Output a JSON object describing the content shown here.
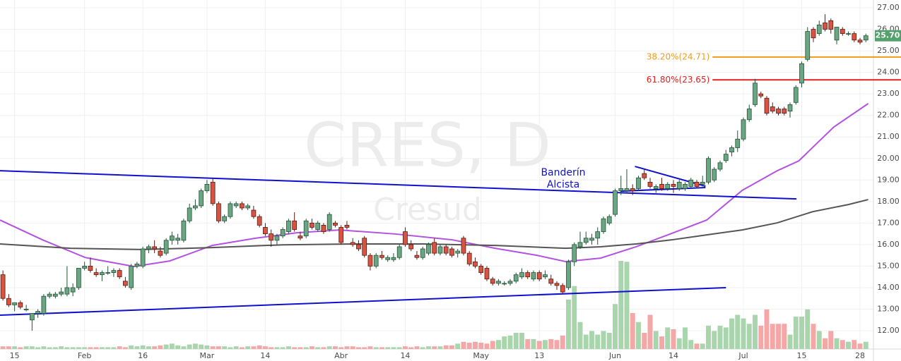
{
  "chart_data": {
    "type": "candlestick",
    "watermark": {
      "symbol": "CRES, D",
      "name": "Cresud"
    },
    "candles": [
      [
        14.6,
        14.8,
        13.4,
        13.5
      ],
      [
        13.5,
        13.7,
        13.1,
        13.2
      ],
      [
        13.2,
        13.3,
        12.9,
        13.3
      ],
      [
        13.3,
        13.4,
        13.0,
        13.1
      ],
      [
        13.0,
        13.2,
        12.9,
        13.0
      ],
      [
        12.5,
        12.8,
        12.0,
        12.8
      ],
      [
        12.8,
        13.0,
        12.6,
        12.9
      ],
      [
        12.8,
        13.7,
        12.7,
        13.6
      ],
      [
        13.6,
        13.8,
        13.5,
        13.7
      ],
      [
        13.6,
        13.8,
        13.5,
        13.7
      ],
      [
        13.7,
        14.0,
        13.6,
        13.8
      ],
      [
        13.7,
        15.0,
        13.6,
        14.0
      ],
      [
        13.8,
        14.2,
        13.6,
        14.0
      ],
      [
        14.0,
        14.9,
        13.9,
        14.9
      ],
      [
        14.9,
        15.2,
        14.8,
        15.0
      ],
      [
        15.0,
        15.4,
        14.7,
        14.8
      ],
      [
        14.7,
        14.9,
        14.5,
        14.6
      ],
      [
        14.6,
        14.8,
        14.3,
        14.7
      ],
      [
        14.7,
        15.0,
        14.6,
        14.7
      ],
      [
        14.7,
        14.9,
        14.5,
        14.8
      ],
      [
        14.8,
        14.9,
        14.4,
        14.5
      ],
      [
        14.3,
        14.5,
        14.0,
        14.1
      ],
      [
        14.0,
        15.1,
        13.9,
        15.0
      ],
      [
        15.0,
        15.2,
        14.9,
        15.1
      ],
      [
        15.0,
        15.9,
        14.9,
        15.8
      ],
      [
        15.8,
        16.0,
        15.6,
        15.9
      ],
      [
        15.9,
        16.2,
        15.6,
        15.8
      ],
      [
        15.7,
        15.9,
        15.4,
        15.5
      ],
      [
        15.6,
        16.3,
        15.5,
        16.2
      ],
      [
        16.2,
        16.6,
        16.0,
        16.4
      ],
      [
        16.2,
        16.5,
        16.0,
        16.3
      ],
      [
        16.2,
        17.2,
        16.1,
        17.1
      ],
      [
        17.1,
        17.9,
        17.0,
        17.7
      ],
      [
        17.7,
        18.1,
        17.6,
        17.8
      ],
      [
        17.8,
        18.6,
        17.7,
        18.5
      ],
      [
        18.5,
        19.0,
        18.4,
        18.8
      ],
      [
        18.9,
        19.1,
        17.8,
        17.9
      ],
      [
        17.9,
        18.0,
        17.0,
        17.1
      ],
      [
        17.1,
        17.4,
        17.0,
        17.3
      ],
      [
        17.3,
        18.0,
        17.2,
        17.9
      ],
      [
        17.8,
        18.0,
        17.7,
        17.9
      ],
      [
        17.9,
        18.0,
        17.6,
        17.7
      ],
      [
        17.7,
        17.9,
        17.6,
        17.8
      ],
      [
        17.6,
        17.8,
        17.2,
        17.3
      ],
      [
        17.3,
        17.4,
        16.8,
        16.9
      ],
      [
        16.8,
        17.0,
        16.4,
        16.5
      ],
      [
        16.5,
        16.7,
        15.9,
        16.2
      ],
      [
        16.2,
        16.5,
        16.0,
        16.4
      ],
      [
        16.4,
        16.8,
        16.3,
        16.7
      ],
      [
        16.6,
        17.2,
        16.5,
        17.1
      ],
      [
        17.1,
        17.5,
        16.6,
        16.7
      ],
      [
        16.4,
        16.6,
        16.2,
        16.3
      ],
      [
        16.4,
        17.2,
        16.3,
        17.1
      ],
      [
        17.0,
        17.2,
        16.7,
        16.8
      ],
      [
        16.7,
        17.1,
        16.6,
        17.0
      ],
      [
        16.9,
        17.0,
        16.5,
        16.6
      ],
      [
        16.7,
        17.5,
        16.6,
        17.4
      ],
      [
        17.0,
        17.1,
        16.8,
        16.9
      ],
      [
        16.8,
        16.9,
        16.0,
        16.1
      ],
      [
        16.9,
        17.1,
        16.7,
        16.8
      ],
      [
        16.1,
        16.3,
        15.9,
        16.0
      ],
      [
        16.0,
        16.2,
        15.7,
        15.8
      ],
      [
        16.3,
        16.4,
        15.4,
        15.5
      ],
      [
        15.5,
        15.6,
        14.8,
        15.0
      ],
      [
        15.0,
        15.6,
        14.9,
        15.5
      ],
      [
        15.5,
        15.7,
        15.3,
        15.4
      ],
      [
        15.3,
        15.5,
        15.2,
        15.4
      ],
      [
        15.3,
        15.6,
        15.2,
        15.4
      ],
      [
        15.4,
        16.0,
        15.3,
        15.9
      ],
      [
        16.6,
        16.8,
        15.9,
        16.0
      ],
      [
        16.0,
        16.2,
        15.7,
        15.8
      ],
      [
        15.5,
        15.7,
        15.3,
        15.4
      ],
      [
        15.4,
        15.9,
        15.3,
        15.8
      ],
      [
        15.6,
        16.1,
        15.5,
        16.0
      ],
      [
        16.1,
        16.3,
        15.5,
        15.6
      ],
      [
        15.6,
        16.0,
        15.5,
        15.9
      ],
      [
        15.9,
        16.0,
        15.5,
        15.6
      ],
      [
        15.8,
        15.9,
        15.4,
        15.5
      ],
      [
        15.6,
        15.8,
        15.4,
        15.7
      ],
      [
        16.3,
        16.4,
        15.5,
        15.6
      ],
      [
        15.6,
        15.7,
        15.0,
        15.1
      ],
      [
        15.2,
        15.4,
        14.9,
        15.0
      ],
      [
        15.0,
        15.1,
        14.6,
        14.7
      ],
      [
        14.9,
        15.0,
        14.3,
        14.4
      ],
      [
        14.4,
        14.5,
        14.1,
        14.2
      ],
      [
        14.2,
        14.4,
        14.1,
        14.3
      ],
      [
        14.2,
        14.3,
        14.1,
        14.2
      ],
      [
        14.2,
        14.4,
        14.1,
        14.3
      ],
      [
        14.3,
        14.7,
        14.2,
        14.6
      ],
      [
        14.5,
        14.9,
        14.4,
        14.7
      ],
      [
        14.7,
        14.8,
        14.4,
        14.5
      ],
      [
        14.4,
        14.8,
        14.3,
        14.7
      ],
      [
        14.7,
        14.8,
        14.3,
        14.4
      ],
      [
        14.5,
        14.8,
        14.4,
        14.6
      ],
      [
        14.4,
        14.6,
        14.1,
        14.2
      ],
      [
        14.2,
        14.3,
        13.9,
        14.1
      ],
      [
        14.1,
        14.2,
        13.7,
        13.8
      ],
      [
        14.0,
        15.3,
        13.9,
        15.2
      ],
      [
        15.2,
        16.1,
        15.0,
        16.0
      ],
      [
        15.9,
        16.6,
        15.8,
        16.1
      ],
      [
        16.1,
        16.6,
        16.0,
        16.3
      ],
      [
        16.2,
        16.5,
        16.0,
        16.3
      ],
      [
        16.3,
        16.8,
        16.0,
        16.6
      ],
      [
        16.6,
        17.3,
        16.5,
        17.2
      ],
      [
        17.0,
        17.4,
        16.9,
        17.3
      ],
      [
        17.4,
        18.6,
        17.3,
        18.5
      ],
      [
        18.5,
        19.2,
        18.3,
        18.6
      ],
      [
        18.5,
        19.5,
        18.4,
        18.6
      ],
      [
        18.6,
        18.8,
        18.3,
        18.5
      ],
      [
        18.6,
        19.2,
        18.5,
        19.1
      ],
      [
        19.3,
        19.5,
        19.0,
        19.1
      ],
      [
        18.9,
        19.1,
        18.6,
        18.7
      ],
      [
        18.6,
        18.8,
        18.4,
        18.7
      ],
      [
        18.8,
        19.1,
        18.5,
        18.6
      ],
      [
        18.6,
        18.9,
        18.5,
        18.8
      ],
      [
        18.8,
        19.0,
        18.4,
        18.7
      ],
      [
        18.6,
        19.0,
        18.5,
        18.9
      ],
      [
        18.6,
        18.9,
        18.5,
        18.8
      ],
      [
        18.7,
        19.1,
        18.6,
        19.0
      ],
      [
        18.9,
        19.0,
        18.6,
        18.7
      ],
      [
        18.8,
        19.2,
        18.7,
        18.9
      ],
      [
        18.9,
        20.1,
        18.8,
        20.0
      ],
      [
        19.0,
        19.6,
        18.9,
        19.5
      ],
      [
        19.5,
        19.9,
        19.4,
        19.8
      ],
      [
        19.9,
        20.4,
        19.8,
        20.2
      ],
      [
        20.3,
        20.6,
        20.1,
        20.5
      ],
      [
        20.5,
        21.3,
        20.3,
        20.9
      ],
      [
        20.9,
        21.9,
        20.8,
        21.8
      ],
      [
        21.8,
        22.5,
        21.7,
        22.3
      ],
      [
        22.5,
        23.7,
        22.4,
        23.5
      ],
      [
        23.0,
        23.1,
        22.8,
        22.9
      ],
      [
        22.8,
        22.9,
        22.0,
        22.1
      ],
      [
        22.4,
        22.6,
        22.1,
        22.2
      ],
      [
        22.3,
        22.4,
        22.0,
        22.1
      ],
      [
        22.3,
        22.4,
        22.0,
        22.1
      ],
      [
        22.2,
        22.6,
        21.9,
        22.5
      ],
      [
        22.6,
        23.4,
        22.5,
        23.3
      ],
      [
        23.5,
        24.5,
        23.3,
        24.4
      ],
      [
        24.6,
        26.1,
        24.5,
        25.9
      ],
      [
        26.0,
        26.1,
        25.4,
        25.6
      ],
      [
        25.8,
        26.4,
        25.7,
        26.2
      ],
      [
        26.3,
        26.7,
        25.9,
        26.0
      ],
      [
        26.4,
        26.5,
        25.8,
        26.0
      ],
      [
        25.5,
        26.1,
        25.3,
        26.1
      ],
      [
        26.0,
        26.1,
        25.7,
        25.8
      ],
      [
        25.8,
        25.9,
        25.7,
        25.8
      ],
      [
        25.8,
        25.9,
        25.4,
        25.5
      ],
      [
        25.5,
        25.6,
        25.3,
        25.4
      ],
      [
        25.5,
        25.8,
        25.4,
        25.7
      ]
    ],
    "volume": [
      3,
      3,
      3,
      2,
      3,
      3,
      2,
      3,
      2,
      2,
      3,
      2,
      2,
      2,
      2,
      2,
      2,
      2,
      2,
      2,
      3,
      2,
      4,
      3,
      4,
      3,
      3,
      4,
      5,
      6,
      4,
      3,
      5,
      6,
      5,
      4,
      3,
      3,
      3,
      2,
      3,
      2,
      3,
      3,
      4,
      3,
      2,
      2,
      2,
      3,
      2,
      2,
      2,
      3,
      2,
      2,
      3,
      3,
      2,
      3,
      3,
      2,
      2,
      3,
      2,
      2,
      2,
      2,
      2,
      3,
      2,
      3,
      2,
      3,
      3,
      3,
      4,
      4,
      6,
      8,
      7,
      8,
      7,
      6,
      9,
      10,
      14,
      15,
      18,
      18,
      11,
      11,
      9,
      10,
      11,
      10,
      15,
      55,
      70,
      30,
      16,
      20,
      16,
      20,
      18,
      50,
      98,
      97,
      40,
      30,
      18,
      38,
      20,
      14,
      24,
      22,
      12,
      24,
      10,
      6,
      6,
      26,
      20,
      26,
      24,
      34,
      38,
      34,
      28,
      38,
      26,
      44,
      28,
      28,
      28,
      16,
      36,
      36,
      44,
      28,
      20,
      12,
      20,
      12,
      10,
      8,
      10,
      6,
      8
    ],
    "colors": {
      "up": "#6ba583",
      "up_edge": "#225437",
      "down": "#d75442",
      "down_edge": "#5b1a13",
      "volume_up": "#a9d5ad",
      "volume_down": "#f5a6a6"
    },
    "xlim": [
      -0.5,
      149.3
    ],
    "xticks": [
      {
        "value": 2,
        "label": "15"
      },
      {
        "value": 14,
        "label": "Feb"
      },
      {
        "value": 24,
        "label": "16"
      },
      {
        "value": 35,
        "label": "Mar"
      },
      {
        "value": 45,
        "label": "14"
      },
      {
        "value": 58,
        "label": "Abr"
      },
      {
        "value": 69,
        "label": "14"
      },
      {
        "value": 82,
        "label": "May"
      },
      {
        "value": 92,
        "label": "13"
      },
      {
        "value": 105,
        "label": "Jun"
      },
      {
        "value": 115,
        "label": "14"
      },
      {
        "value": 127,
        "label": "Jul"
      },
      {
        "value": 137,
        "label": "15"
      },
      {
        "value": 147,
        "label": "28"
      }
    ],
    "ylim": [
      11.15,
      27.36
    ],
    "yticks": [
      {
        "value": 12,
        "label": "12.00"
      },
      {
        "value": 13,
        "label": "13.00"
      },
      {
        "value": 14,
        "label": "14.00"
      },
      {
        "value": 15,
        "label": "15.00"
      },
      {
        "value": 16,
        "label": "16.00"
      },
      {
        "value": 17,
        "label": "17.00"
      },
      {
        "value": 18,
        "label": "18.00"
      },
      {
        "value": 19,
        "label": "19.00"
      },
      {
        "value": 20,
        "label": "20.00"
      },
      {
        "value": 21,
        "label": "21.00"
      },
      {
        "value": 22,
        "label": "22.00"
      },
      {
        "value": 23,
        "label": "23.00"
      },
      {
        "value": 24,
        "label": "24.00"
      },
      {
        "value": 25,
        "label": "25.00"
      },
      {
        "value": 26,
        "label": "26.00"
      },
      {
        "value": 27,
        "label": "27.00"
      }
    ],
    "grid": true,
    "last_price": {
      "value": 25.7,
      "label": "25.70",
      "color": "#53a16b"
    },
    "moving_averages": [
      {
        "color": "#b452e0",
        "points": [
          [
            -0.5,
            17.14
          ],
          [
            6.8,
            16.22
          ],
          [
            14.1,
            15.4
          ],
          [
            22.5,
            14.98
          ],
          [
            28.6,
            15.24
          ],
          [
            35.9,
            15.96
          ],
          [
            43.2,
            16.29
          ],
          [
            50.4,
            16.55
          ],
          [
            57.7,
            16.68
          ],
          [
            67.4,
            16.49
          ],
          [
            77.1,
            16.22
          ],
          [
            84.4,
            15.83
          ],
          [
            91.6,
            15.5
          ],
          [
            96.5,
            15.21
          ],
          [
            102.5,
            15.37
          ],
          [
            108.6,
            15.9
          ],
          [
            114.7,
            16.52
          ],
          [
            120.7,
            17.14
          ],
          [
            126.8,
            18.52
          ],
          [
            132.8,
            19.43
          ],
          [
            136.5,
            19.89
          ],
          [
            142.5,
            21.46
          ],
          [
            148.4,
            22.55
          ]
        ]
      },
      {
        "color": "#555555",
        "points": [
          [
            -0.5,
            16.03
          ],
          [
            11.6,
            15.83
          ],
          [
            23.8,
            15.77
          ],
          [
            35.9,
            15.86
          ],
          [
            48,
            15.99
          ],
          [
            60.1,
            16.03
          ],
          [
            72.2,
            16.03
          ],
          [
            84.4,
            15.96
          ],
          [
            96.5,
            15.83
          ],
          [
            102.5,
            15.9
          ],
          [
            108.6,
            16.03
          ],
          [
            114.7,
            16.22
          ],
          [
            120.7,
            16.45
          ],
          [
            126.8,
            16.68
          ],
          [
            132.8,
            17.01
          ],
          [
            138.9,
            17.53
          ],
          [
            145,
            17.86
          ],
          [
            148.4,
            18.09
          ]
        ]
      }
    ],
    "trendlines": [
      {
        "color": "#1010d0",
        "points": [
          [
            -0.5,
            19.43
          ],
          [
            136.1,
            18.12
          ]
        ]
      },
      {
        "color": "#1010d0",
        "points": [
          [
            -0.5,
            12.72
          ],
          [
            124,
            14.0
          ]
        ]
      },
      {
        "color": "#1010d0",
        "points": [
          [
            108.4,
            19.63
          ],
          [
            120.5,
            18.71
          ]
        ]
      },
      {
        "color": "#1010d0",
        "points": [
          [
            105.9,
            18.48
          ],
          [
            120.5,
            18.65
          ]
        ]
      }
    ],
    "fib_levels": [
      {
        "value": 24.71,
        "label": "38.20%(24.71)",
        "color": "#f29a1a",
        "x_start": 121.7
      },
      {
        "value": 23.65,
        "label": "61.80%(23.65)",
        "color": "#e0201e",
        "x_start": 121.7
      }
    ],
    "annotation": {
      "lines": [
        "Banderín",
        "Alcista"
      ],
      "color": "#1010d0"
    }
  }
}
